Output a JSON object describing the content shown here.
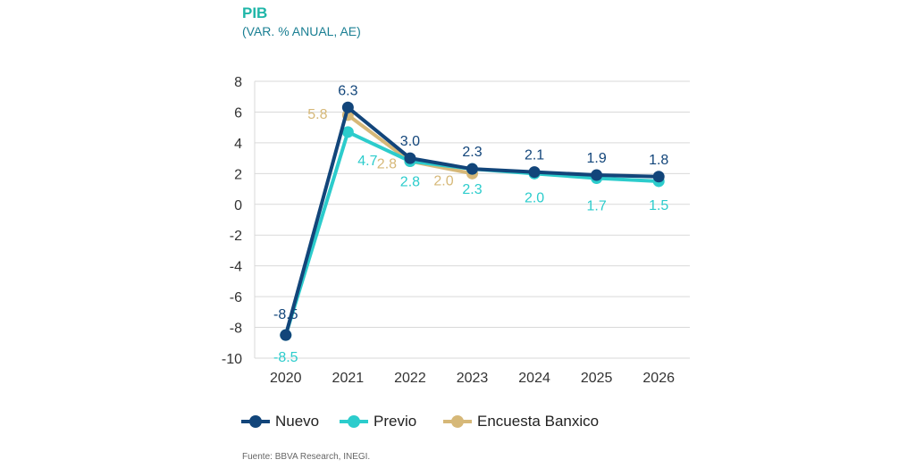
{
  "header": {
    "title": "PIB",
    "subtitle": "(VAR. % ANUAL, AE)"
  },
  "footer": {
    "source": "Fuente: BBVA Research, INEGI."
  },
  "chart_data": {
    "type": "line",
    "title": "PIB",
    "subtitle": "(VAR. % ANUAL, AE)",
    "x": [
      "2020",
      "2021",
      "2022",
      "2023",
      "2024",
      "2025",
      "2026"
    ],
    "ylim": [
      -10,
      8
    ],
    "yticks": [
      8,
      6,
      4,
      2,
      0,
      -2,
      -4,
      -6,
      -8,
      -10
    ],
    "grid": true,
    "legend_position": "bottom",
    "series": [
      {
        "name": "Nuevo",
        "color": "#12457a",
        "values": [
          -8.5,
          6.3,
          3.0,
          2.3,
          2.1,
          1.9,
          1.8
        ],
        "labels": [
          "-8.5",
          "6.3",
          "3.0",
          "2.3",
          "2.1",
          "1.9",
          "1.8"
        ]
      },
      {
        "name": "Previo",
        "color": "#2ccccc",
        "values": [
          -8.5,
          4.7,
          2.8,
          2.3,
          2.0,
          1.7,
          1.5
        ],
        "labels": [
          "-8.5",
          "4.7",
          "2.8",
          "2.3",
          "2.0",
          "1.7",
          "1.5"
        ]
      },
      {
        "name": "Encuesta Banxico",
        "color": "#d6b878",
        "values": [
          null,
          5.8,
          2.8,
          2.0,
          null,
          null,
          null
        ],
        "labels": [
          null,
          "5.8",
          "2.8",
          "2.0",
          null,
          null,
          null
        ]
      }
    ]
  }
}
